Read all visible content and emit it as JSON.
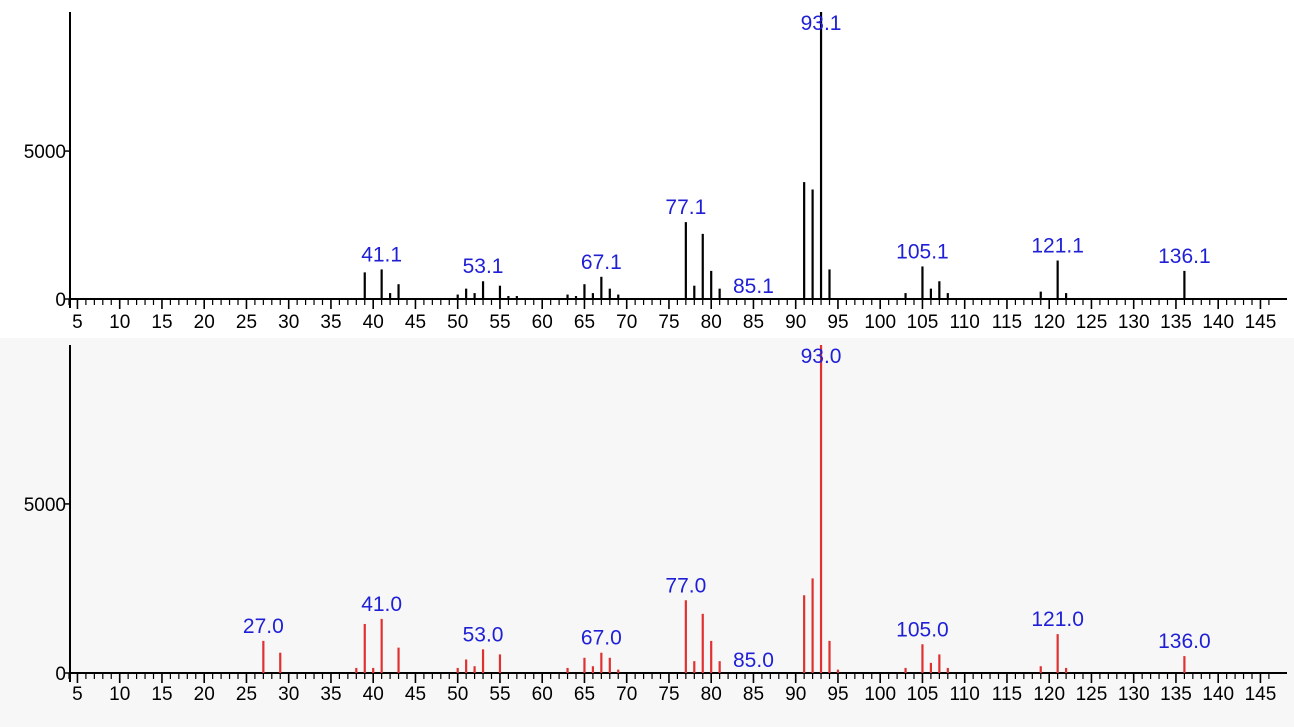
{
  "chart_data": [
    {
      "type": "bar",
      "color": "#000000",
      "label_color": "#1f1fd6",
      "xlim": [
        4,
        146.5
      ],
      "ylim": [
        0,
        9700
      ],
      "x_ticks": [
        "5",
        "10",
        "15",
        "20",
        "25",
        "30",
        "35",
        "40",
        "45",
        "50",
        "55",
        "60",
        "65",
        "70",
        "75",
        "80",
        "85",
        "90",
        "95",
        "100",
        "105",
        "110",
        "115",
        "120",
        "125",
        "130",
        "135",
        "140",
        "145"
      ],
      "y_ticks": [
        "5000",
        "0"
      ],
      "peaks": [
        {
          "x": 39,
          "y": 900
        },
        {
          "x": 41,
          "y": 1000
        },
        {
          "x": 42,
          "y": 200
        },
        {
          "x": 43,
          "y": 500
        },
        {
          "x": 50,
          "y": 150
        },
        {
          "x": 51,
          "y": 350
        },
        {
          "x": 52,
          "y": 200
        },
        {
          "x": 53,
          "y": 600
        },
        {
          "x": 55,
          "y": 450
        },
        {
          "x": 56,
          "y": 100
        },
        {
          "x": 57,
          "y": 100
        },
        {
          "x": 63,
          "y": 150
        },
        {
          "x": 64,
          "y": 100
        },
        {
          "x": 65,
          "y": 500
        },
        {
          "x": 66,
          "y": 200
        },
        {
          "x": 67,
          "y": 750
        },
        {
          "x": 68,
          "y": 350
        },
        {
          "x": 69,
          "y": 150
        },
        {
          "x": 77,
          "y": 2600
        },
        {
          "x": 78,
          "y": 450
        },
        {
          "x": 79,
          "y": 2200
        },
        {
          "x": 80,
          "y": 950
        },
        {
          "x": 81,
          "y": 350
        },
        {
          "x": 91,
          "y": 3950
        },
        {
          "x": 92,
          "y": 3700
        },
        {
          "x": 93,
          "y": 9700
        },
        {
          "x": 94,
          "y": 1000
        },
        {
          "x": 103,
          "y": 200
        },
        {
          "x": 105,
          "y": 1100
        },
        {
          "x": 106,
          "y": 350
        },
        {
          "x": 107,
          "y": 600
        },
        {
          "x": 108,
          "y": 200
        },
        {
          "x": 119,
          "y": 250
        },
        {
          "x": 121,
          "y": 1300
        },
        {
          "x": 122,
          "y": 200
        },
        {
          "x": 136,
          "y": 950
        }
      ],
      "annotations": [
        {
          "label": "41.1",
          "x": 41,
          "y": 1000
        },
        {
          "label": "53.1",
          "x": 53,
          "y": 600
        },
        {
          "label": "67.1",
          "x": 67,
          "y": 750
        },
        {
          "label": "77.1",
          "x": 77,
          "y": 2600
        },
        {
          "label": "85.1",
          "x": 85,
          "y": 0
        },
        {
          "label": "93.1",
          "x": 93,
          "y": 9700
        },
        {
          "label": "105.1",
          "x": 105,
          "y": 1100
        },
        {
          "label": "121.1",
          "x": 121,
          "y": 1300
        },
        {
          "label": "136.1",
          "x": 136,
          "y": 950
        }
      ]
    },
    {
      "type": "bar",
      "color": "#e03030",
      "label_color": "#1f1fd6",
      "xlim": [
        4,
        146.5
      ],
      "ylim": [
        0,
        9700
      ],
      "x_ticks": [
        "5",
        "10",
        "15",
        "20",
        "25",
        "30",
        "35",
        "40",
        "45",
        "50",
        "55",
        "60",
        "65",
        "70",
        "75",
        "80",
        "85",
        "90",
        "95",
        "100",
        "105",
        "110",
        "115",
        "120",
        "125",
        "130",
        "135",
        "140",
        "145"
      ],
      "y_ticks": [
        "5000",
        "0"
      ],
      "peaks": [
        {
          "x": 27,
          "y": 950
        },
        {
          "x": 29,
          "y": 600
        },
        {
          "x": 38,
          "y": 150
        },
        {
          "x": 39,
          "y": 1450
        },
        {
          "x": 40,
          "y": 150
        },
        {
          "x": 41,
          "y": 1600
        },
        {
          "x": 43,
          "y": 750
        },
        {
          "x": 50,
          "y": 150
        },
        {
          "x": 51,
          "y": 400
        },
        {
          "x": 52,
          "y": 200
        },
        {
          "x": 53,
          "y": 700
        },
        {
          "x": 55,
          "y": 550
        },
        {
          "x": 63,
          "y": 150
        },
        {
          "x": 65,
          "y": 450
        },
        {
          "x": 66,
          "y": 200
        },
        {
          "x": 67,
          "y": 600
        },
        {
          "x": 68,
          "y": 450
        },
        {
          "x": 69,
          "y": 100
        },
        {
          "x": 77,
          "y": 2150
        },
        {
          "x": 78,
          "y": 350
        },
        {
          "x": 79,
          "y": 1750
        },
        {
          "x": 80,
          "y": 950
        },
        {
          "x": 81,
          "y": 350
        },
        {
          "x": 91,
          "y": 2300
        },
        {
          "x": 92,
          "y": 2800
        },
        {
          "x": 93,
          "y": 9700
        },
        {
          "x": 94,
          "y": 950
        },
        {
          "x": 95,
          "y": 100
        },
        {
          "x": 103,
          "y": 150
        },
        {
          "x": 105,
          "y": 850
        },
        {
          "x": 106,
          "y": 300
        },
        {
          "x": 107,
          "y": 550
        },
        {
          "x": 108,
          "y": 150
        },
        {
          "x": 119,
          "y": 200
        },
        {
          "x": 121,
          "y": 1150
        },
        {
          "x": 122,
          "y": 150
        },
        {
          "x": 136,
          "y": 500
        }
      ],
      "annotations": [
        {
          "label": "27.0",
          "x": 27,
          "y": 950
        },
        {
          "label": "41.0",
          "x": 41,
          "y": 1600
        },
        {
          "label": "53.0",
          "x": 53,
          "y": 700
        },
        {
          "label": "67.0",
          "x": 67,
          "y": 600
        },
        {
          "label": "77.0",
          "x": 77,
          "y": 2150
        },
        {
          "label": "85.0",
          "x": 85,
          "y": 0
        },
        {
          "label": "93.0",
          "x": 93,
          "y": 9700
        },
        {
          "label": "105.0",
          "x": 105,
          "y": 850
        },
        {
          "label": "121.0",
          "x": 121,
          "y": 1150
        },
        {
          "label": "136.0",
          "x": 136,
          "y": 500
        }
      ]
    }
  ]
}
